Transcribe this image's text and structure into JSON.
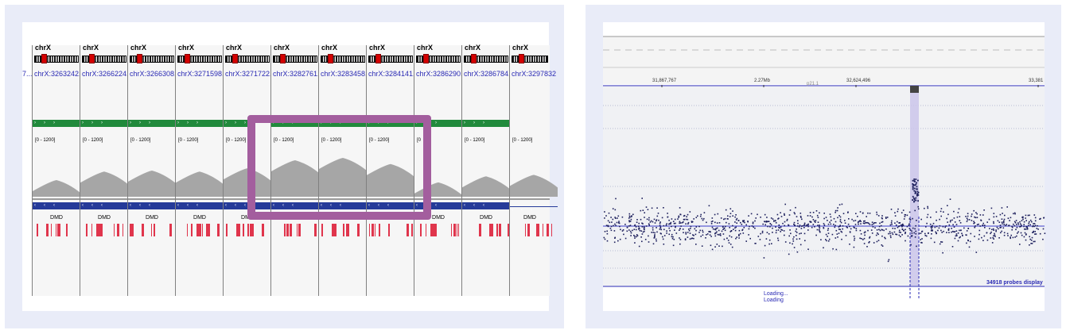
{
  "left_view": {
    "chromosome_label": "chrX",
    "first_locus": "7...",
    "locus_labels": [
      "chrX:3263242...",
      "chrX:3266224...",
      "chrX:3266308...",
      "chrX:3271598...",
      "chrX:3271722...",
      "chrX:3282761...",
      "chrX:3283458...",
      "chrX:3284141...",
      "chrX:3286290...",
      "chrX:3286784...",
      "chrX:3297832"
    ],
    "data_range": "[0 - 1200]",
    "range_partial": "[0",
    "gene_name": "DMD",
    "coverage_levels": [
      0.32,
      0.5,
      0.52,
      0.5,
      0.57,
      0.74,
      0.79,
      0.66,
      0.27,
      0.4,
      0.43
    ],
    "colors": {
      "coverage": "#a6a6a6",
      "track_green": "#218a3c",
      "track_blue": "#253a99",
      "highlight": "#a35e9e",
      "exon": "#e0354c",
      "ideogram_centromere": "#d40000"
    }
  },
  "right_view": {
    "ruler_labels": [
      "31,867,767",
      "2.27Mb",
      "p21.1",
      "32,624,496",
      "33,381"
    ],
    "probes_status": "34918 probes display",
    "loading_1": "Loading...",
    "loading_2": "Loading",
    "colors": {
      "points": "#1c1e5c",
      "selection": "#c9c3ea",
      "axis": "#2a2ab4"
    }
  }
}
